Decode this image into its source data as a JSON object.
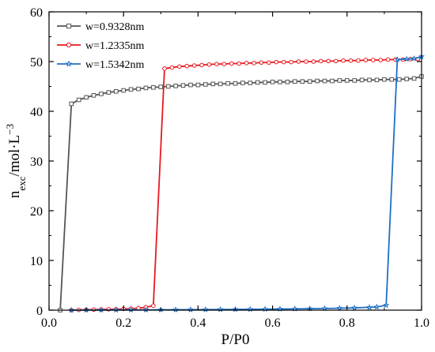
{
  "chart_data": {
    "type": "line",
    "title": "",
    "xlabel": "P/P0",
    "ylabel_main": "n",
    "ylabel_sub": "exc",
    "ylabel_rest": "/mol·L",
    "ylabel_sup": "−3",
    "xlim": [
      0,
      1.0
    ],
    "ylim": [
      0,
      60
    ],
    "xticks": [
      "0.0",
      "0.2",
      "0.4",
      "0.6",
      "0.8",
      "1.0"
    ],
    "yticks": [
      "0",
      "10",
      "20",
      "30",
      "40",
      "50",
      "60"
    ],
    "grid": false,
    "legend_position": "top-left",
    "series": [
      {
        "name": "w=0.9328nm",
        "color": "#555555",
        "marker": "square",
        "points": [
          [
            0.03,
            0.0
          ],
          [
            0.06,
            41.5
          ],
          [
            0.08,
            42.3
          ],
          [
            0.1,
            42.8
          ],
          [
            0.12,
            43.2
          ],
          [
            0.14,
            43.5
          ],
          [
            0.16,
            43.8
          ],
          [
            0.18,
            44.0
          ],
          [
            0.2,
            44.2
          ],
          [
            0.22,
            44.4
          ],
          [
            0.24,
            44.5
          ],
          [
            0.26,
            44.7
          ],
          [
            0.28,
            44.8
          ],
          [
            0.3,
            44.9
          ],
          [
            0.32,
            45.0
          ],
          [
            0.34,
            45.1
          ],
          [
            0.36,
            45.2
          ],
          [
            0.38,
            45.3
          ],
          [
            0.4,
            45.3
          ],
          [
            0.42,
            45.4
          ],
          [
            0.44,
            45.5
          ],
          [
            0.46,
            45.5
          ],
          [
            0.48,
            45.6
          ],
          [
            0.5,
            45.6
          ],
          [
            0.52,
            45.7
          ],
          [
            0.54,
            45.7
          ],
          [
            0.56,
            45.8
          ],
          [
            0.58,
            45.8
          ],
          [
            0.6,
            45.9
          ],
          [
            0.62,
            45.9
          ],
          [
            0.64,
            45.9
          ],
          [
            0.66,
            46.0
          ],
          [
            0.68,
            46.0
          ],
          [
            0.7,
            46.0
          ],
          [
            0.72,
            46.1
          ],
          [
            0.74,
            46.1
          ],
          [
            0.76,
            46.1
          ],
          [
            0.78,
            46.2
          ],
          [
            0.8,
            46.2
          ],
          [
            0.82,
            46.2
          ],
          [
            0.84,
            46.3
          ],
          [
            0.86,
            46.3
          ],
          [
            0.88,
            46.3
          ],
          [
            0.9,
            46.4
          ],
          [
            0.92,
            46.4
          ],
          [
            0.94,
            46.4
          ],
          [
            0.96,
            46.5
          ],
          [
            0.98,
            46.6
          ],
          [
            1.0,
            47.0
          ]
        ]
      },
      {
        "name": "w=1.2335nm",
        "color": "#e8191f",
        "marker": "circle",
        "points": [
          [
            0.06,
            0.0
          ],
          [
            0.08,
            0.05
          ],
          [
            0.1,
            0.1
          ],
          [
            0.12,
            0.12
          ],
          [
            0.14,
            0.15
          ],
          [
            0.16,
            0.18
          ],
          [
            0.18,
            0.2
          ],
          [
            0.2,
            0.25
          ],
          [
            0.22,
            0.3
          ],
          [
            0.24,
            0.4
          ],
          [
            0.26,
            0.6
          ],
          [
            0.28,
            0.9
          ],
          [
            0.31,
            48.6
          ],
          [
            0.33,
            48.8
          ],
          [
            0.35,
            49.0
          ],
          [
            0.37,
            49.1
          ],
          [
            0.39,
            49.2
          ],
          [
            0.41,
            49.3
          ],
          [
            0.43,
            49.4
          ],
          [
            0.45,
            49.5
          ],
          [
            0.47,
            49.5
          ],
          [
            0.49,
            49.6
          ],
          [
            0.51,
            49.6
          ],
          [
            0.53,
            49.7
          ],
          [
            0.55,
            49.7
          ],
          [
            0.57,
            49.8
          ],
          [
            0.59,
            49.8
          ],
          [
            0.61,
            49.9
          ],
          [
            0.63,
            49.9
          ],
          [
            0.65,
            49.9
          ],
          [
            0.67,
            50.0
          ],
          [
            0.69,
            50.0
          ],
          [
            0.71,
            50.0
          ],
          [
            0.73,
            50.1
          ],
          [
            0.75,
            50.1
          ],
          [
            0.77,
            50.1
          ],
          [
            0.79,
            50.2
          ],
          [
            0.81,
            50.2
          ],
          [
            0.83,
            50.2
          ],
          [
            0.85,
            50.3
          ],
          [
            0.87,
            50.3
          ],
          [
            0.89,
            50.3
          ],
          [
            0.91,
            50.4
          ],
          [
            0.93,
            50.4
          ],
          [
            0.95,
            50.4
          ],
          [
            0.97,
            50.5
          ],
          [
            0.99,
            50.5
          ]
        ]
      },
      {
        "name": "w=1.5342nm",
        "color": "#1f6fc5",
        "marker": "star",
        "points": [
          [
            0.06,
            0.0
          ],
          [
            0.1,
            0.02
          ],
          [
            0.14,
            0.03
          ],
          [
            0.18,
            0.04
          ],
          [
            0.22,
            0.05
          ],
          [
            0.26,
            0.06
          ],
          [
            0.3,
            0.08
          ],
          [
            0.34,
            0.09
          ],
          [
            0.38,
            0.1
          ],
          [
            0.42,
            0.12
          ],
          [
            0.46,
            0.14
          ],
          [
            0.5,
            0.16
          ],
          [
            0.54,
            0.18
          ],
          [
            0.58,
            0.2
          ],
          [
            0.62,
            0.23
          ],
          [
            0.66,
            0.26
          ],
          [
            0.7,
            0.3
          ],
          [
            0.74,
            0.34
          ],
          [
            0.78,
            0.4
          ],
          [
            0.82,
            0.47
          ],
          [
            0.86,
            0.57
          ],
          [
            0.88,
            0.65
          ],
          [
            0.905,
            1.0
          ],
          [
            0.935,
            50.4
          ],
          [
            0.96,
            50.5
          ],
          [
            0.98,
            50.6
          ],
          [
            1.0,
            51.0
          ]
        ]
      }
    ]
  }
}
